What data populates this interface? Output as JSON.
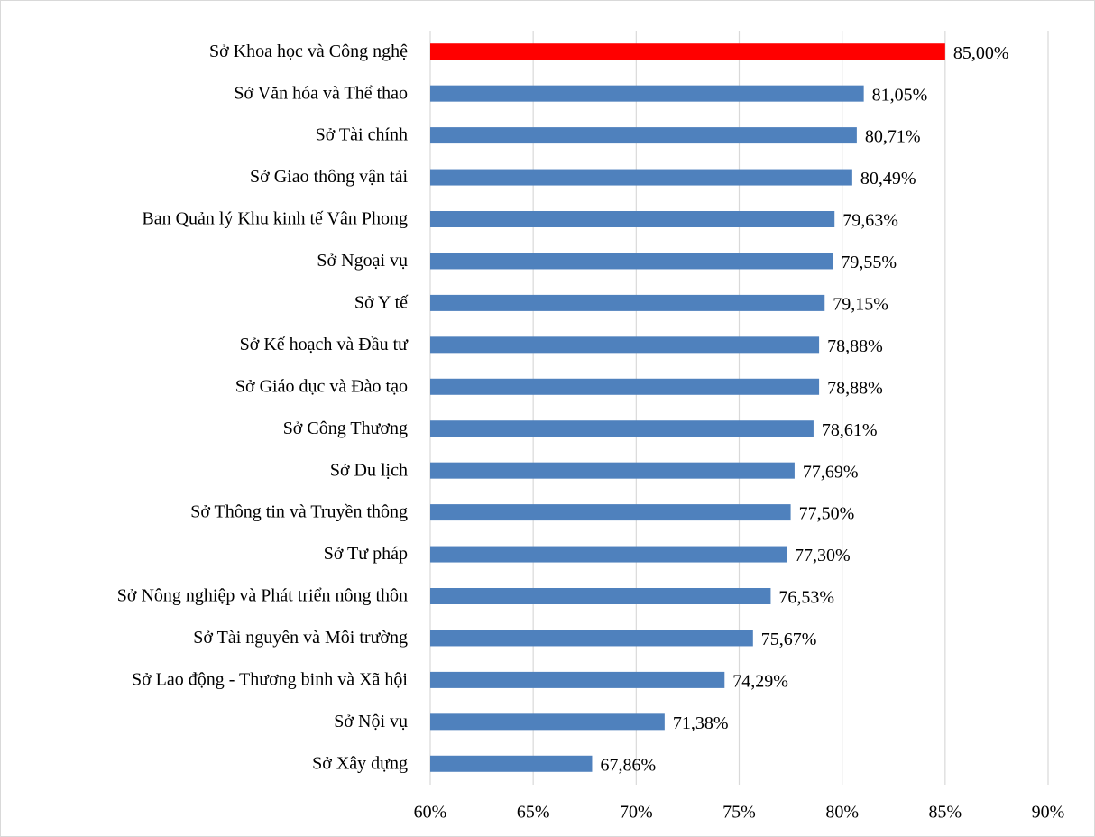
{
  "chart_data": {
    "type": "barh",
    "categories": [
      "Sở Khoa học và Công nghệ",
      "Sở Văn hóa và Thể thao",
      "Sở Tài chính",
      "Sở Giao thông vận tải",
      "Ban Quản lý Khu kinh tế Vân Phong",
      "Sở Ngoại vụ",
      "Sở Y tế",
      "Sở Kế hoạch và Đầu tư",
      "Sở Giáo dục và Đào tạo",
      "Sở Công Thương",
      "Sở Du lịch",
      "Sở Thông tin và Truyền thông",
      "Sở Tư pháp",
      "Sở Nông nghiệp và Phát triển nông thôn",
      "Sở Tài nguyên và Môi trường",
      "Sở Lao động - Thương binh và Xã hội",
      "Sở Nội vụ",
      "Sở Xây dựng"
    ],
    "values": [
      85.0,
      81.05,
      80.71,
      80.49,
      79.63,
      79.55,
      79.15,
      78.88,
      78.88,
      78.61,
      77.69,
      77.5,
      77.3,
      76.53,
      75.67,
      74.29,
      71.38,
      67.86
    ],
    "value_labels": [
      "85,00%",
      "81,05%",
      "80,71%",
      "80,49%",
      "79,63%",
      "79,55%",
      "79,15%",
      "78,88%",
      "78,88%",
      "78,61%",
      "77,69%",
      "77,50%",
      "77,30%",
      "76,53%",
      "75,67%",
      "74,29%",
      "71,38%",
      "67,86%"
    ],
    "colors": [
      "#ff0000",
      "#4f81bd",
      "#4f81bd",
      "#4f81bd",
      "#4f81bd",
      "#4f81bd",
      "#4f81bd",
      "#4f81bd",
      "#4f81bd",
      "#4f81bd",
      "#4f81bd",
      "#4f81bd",
      "#4f81bd",
      "#4f81bd",
      "#4f81bd",
      "#4f81bd",
      "#4f81bd",
      "#4f81bd"
    ],
    "xlim": [
      60,
      90
    ],
    "xticks": [
      {
        "value": 60,
        "label": "60%"
      },
      {
        "value": 65,
        "label": "65%"
      },
      {
        "value": 70,
        "label": "70%"
      },
      {
        "value": 75,
        "label": "75%"
      },
      {
        "value": 80,
        "label": "80%"
      },
      {
        "value": 85,
        "label": "85%"
      },
      {
        "value": 90,
        "label": "90%"
      }
    ],
    "grid": true
  }
}
